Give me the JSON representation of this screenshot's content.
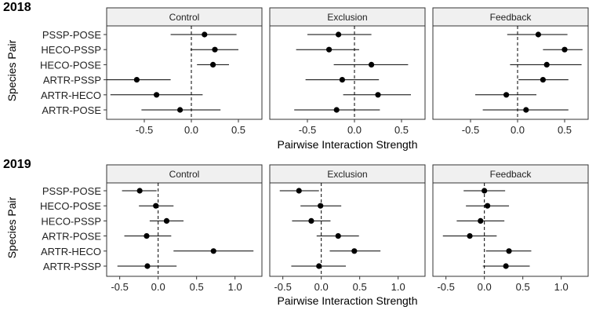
{
  "xlabel": "Pairwise Interaction Strength",
  "ylabel": "Species Pair",
  "chart_data": [
    {
      "type": "scatter",
      "title": "2018",
      "xlabel": "Pairwise Interaction Strength",
      "ylabel": "Species Pair",
      "xlim": [
        -0.9,
        0.75
      ],
      "xticks": [
        -0.5,
        0.0,
        0.5
      ],
      "xtick_labels": [
        "-0.5",
        "0.0",
        "0.5"
      ],
      "zero_reference": 0,
      "categories": [
        "PSSP-POSE",
        "HECO-PSSP",
        "HECO-POSE",
        "ARTR-PSSP",
        "ARTR-HECO",
        "ARTR-POSE"
      ],
      "facets": [
        {
          "name": "Control",
          "points": [
            {
              "pair": "PSSP-POSE",
              "estimate": 0.14,
              "lower": -0.22,
              "upper": 0.48
            },
            {
              "pair": "HECO-PSSP",
              "estimate": 0.25,
              "lower": -0.01,
              "upper": 0.5
            },
            {
              "pair": "HECO-POSE",
              "estimate": 0.23,
              "lower": 0.06,
              "upper": 0.4
            },
            {
              "pair": "ARTR-PSSP",
              "estimate": -0.58,
              "lower": -0.9,
              "upper": -0.22
            },
            {
              "pair": "ARTR-HECO",
              "estimate": -0.37,
              "lower": -0.86,
              "upper": 0.12
            },
            {
              "pair": "ARTR-POSE",
              "estimate": -0.12,
              "lower": -0.53,
              "upper": 0.31
            }
          ]
        },
        {
          "name": "Exclusion",
          "points": [
            {
              "pair": "PSSP-POSE",
              "estimate": -0.17,
              "lower": -0.5,
              "upper": 0.18
            },
            {
              "pair": "HECO-PSSP",
              "estimate": -0.27,
              "lower": -0.62,
              "upper": 0.05
            },
            {
              "pair": "HECO-POSE",
              "estimate": 0.18,
              "lower": -0.22,
              "upper": 0.57
            },
            {
              "pair": "ARTR-PSSP",
              "estimate": -0.13,
              "lower": -0.52,
              "upper": 0.26
            },
            {
              "pair": "ARTR-HECO",
              "estimate": 0.25,
              "lower": -0.12,
              "upper": 0.6
            },
            {
              "pair": "ARTR-POSE",
              "estimate": -0.19,
              "lower": -0.64,
              "upper": 0.27
            }
          ]
        },
        {
          "name": "Feedback",
          "points": [
            {
              "pair": "PSSP-POSE",
              "estimate": 0.22,
              "lower": -0.11,
              "upper": 0.53
            },
            {
              "pair": "HECO-PSSP",
              "estimate": 0.5,
              "lower": 0.27,
              "upper": 0.69
            },
            {
              "pair": "HECO-POSE",
              "estimate": 0.31,
              "lower": -0.08,
              "upper": 0.68
            },
            {
              "pair": "ARTR-PSSP",
              "estimate": 0.27,
              "lower": 0.01,
              "upper": 0.54
            },
            {
              "pair": "ARTR-HECO",
              "estimate": -0.12,
              "lower": -0.45,
              "upper": 0.2
            },
            {
              "pair": "ARTR-POSE",
              "estimate": 0.09,
              "lower": -0.37,
              "upper": 0.54
            }
          ]
        }
      ]
    },
    {
      "type": "scatter",
      "title": "2019",
      "xlabel": "Pairwise Interaction Strength",
      "ylabel": "Species Pair",
      "xlim": [
        -0.67,
        1.35
      ],
      "xticks": [
        -0.5,
        0.0,
        0.5,
        1.0
      ],
      "xtick_labels": [
        "-0.5",
        "0.0",
        "0.5",
        "1.0"
      ],
      "zero_reference": 0,
      "categories": [
        "PSSP-POSE",
        "HECO-POSE",
        "HECO-PSSP",
        "ARTR-POSE",
        "ARTR-HECO",
        "ARTR-PSSP"
      ],
      "facets": [
        {
          "name": "Control",
          "points": [
            {
              "pair": "PSSP-POSE",
              "estimate": -0.24,
              "lower": -0.47,
              "upper": -0.02
            },
            {
              "pair": "HECO-POSE",
              "estimate": -0.03,
              "lower": -0.25,
              "upper": 0.2
            },
            {
              "pair": "HECO-PSSP",
              "estimate": 0.11,
              "lower": -0.11,
              "upper": 0.33
            },
            {
              "pair": "ARTR-POSE",
              "estimate": -0.15,
              "lower": -0.44,
              "upper": 0.17
            },
            {
              "pair": "ARTR-HECO",
              "estimate": 0.72,
              "lower": 0.2,
              "upper": 1.24
            },
            {
              "pair": "ARTR-PSSP",
              "estimate": -0.14,
              "lower": -0.53,
              "upper": 0.24
            }
          ]
        },
        {
          "name": "Exclusion",
          "points": [
            {
              "pair": "PSSP-POSE",
              "estimate": -0.29,
              "lower": -0.54,
              "upper": -0.03
            },
            {
              "pair": "HECO-POSE",
              "estimate": -0.01,
              "lower": -0.27,
              "upper": 0.26
            },
            {
              "pair": "HECO-PSSP",
              "estimate": -0.13,
              "lower": -0.38,
              "upper": 0.12
            },
            {
              "pair": "ARTR-POSE",
              "estimate": 0.22,
              "lower": -0.06,
              "upper": 0.49
            },
            {
              "pair": "ARTR-HECO",
              "estimate": 0.43,
              "lower": 0.11,
              "upper": 0.77
            },
            {
              "pair": "ARTR-PSSP",
              "estimate": -0.03,
              "lower": -0.39,
              "upper": 0.32
            }
          ]
        },
        {
          "name": "Feedback",
          "points": [
            {
              "pair": "PSSP-POSE",
              "estimate": 0.0,
              "lower": -0.27,
              "upper": 0.27
            },
            {
              "pair": "HECO-POSE",
              "estimate": 0.04,
              "lower": -0.24,
              "upper": 0.32
            },
            {
              "pair": "HECO-PSSP",
              "estimate": -0.05,
              "lower": -0.36,
              "upper": 0.26
            },
            {
              "pair": "ARTR-POSE",
              "estimate": -0.19,
              "lower": -0.54,
              "upper": 0.16
            },
            {
              "pair": "ARTR-HECO",
              "estimate": 0.32,
              "lower": 0.02,
              "upper": 0.61
            },
            {
              "pair": "ARTR-PSSP",
              "estimate": 0.28,
              "lower": -0.02,
              "upper": 0.59
            }
          ]
        }
      ]
    }
  ]
}
